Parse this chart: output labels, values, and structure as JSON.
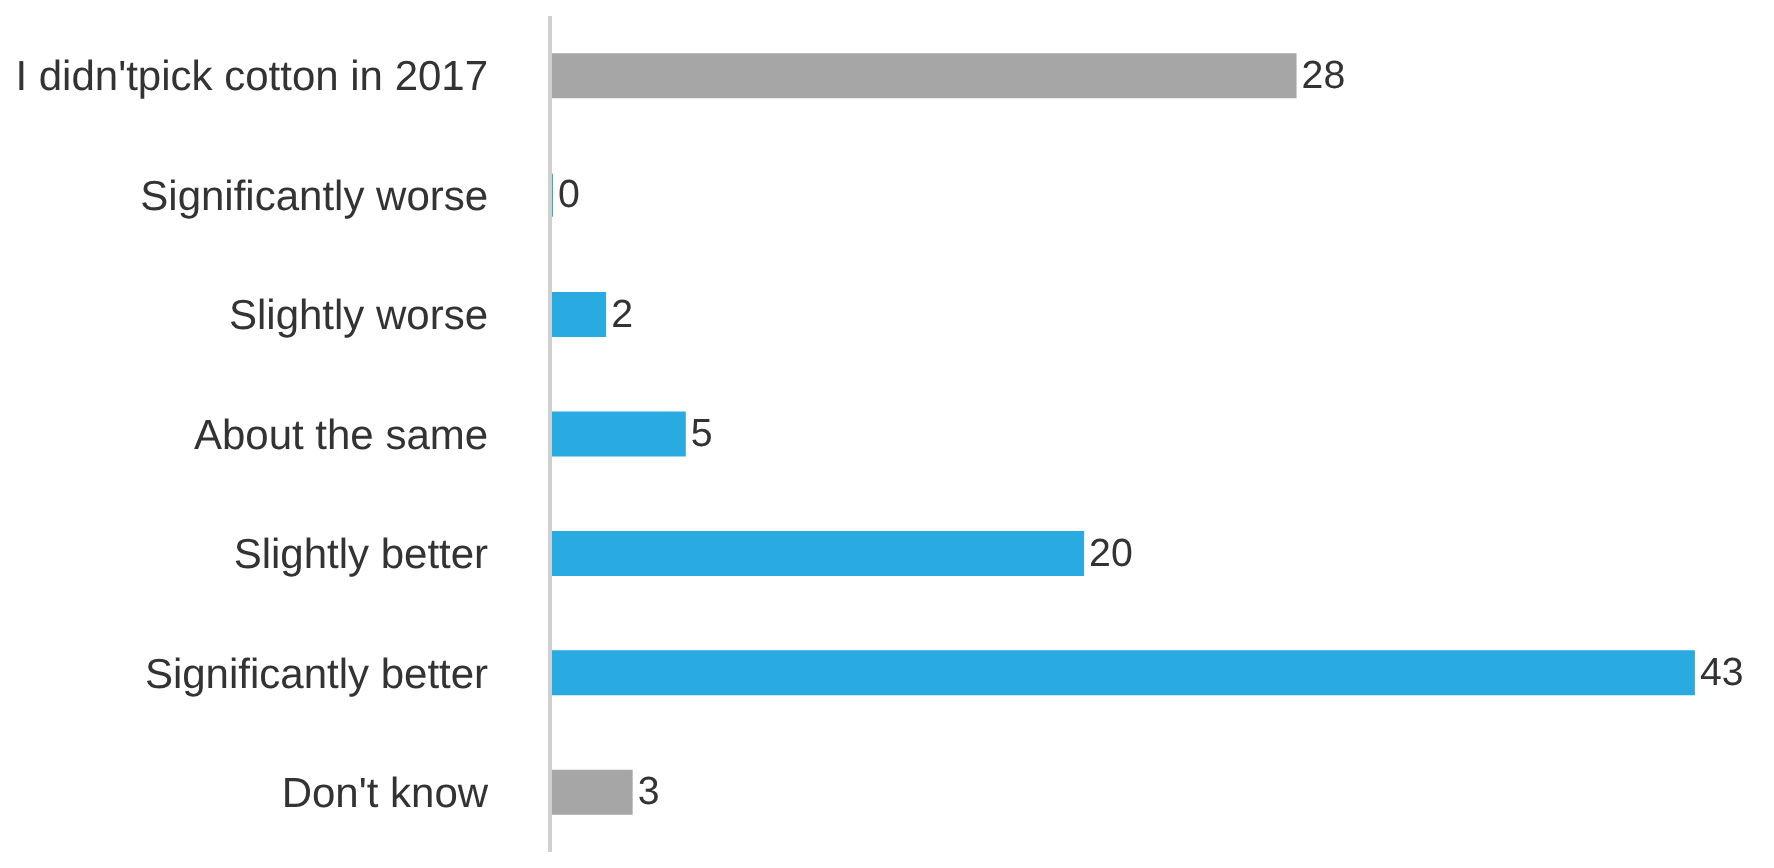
{
  "chart_data": {
    "type": "bar",
    "orientation": "horizontal",
    "categories": [
      "I didn'tpick cotton in 2017",
      "Significantly worse",
      "Slightly worse",
      "About the same",
      "Slightly better",
      "Significantly better",
      "Don't know"
    ],
    "values": [
      28,
      0,
      2,
      5,
      20,
      43,
      3
    ],
    "colors": [
      "#a6a6a6",
      "#29abe2",
      "#29abe2",
      "#29abe2",
      "#29abe2",
      "#29abe2",
      "#a6a6a6"
    ],
    "tick_labels": "y",
    "data_labels": true
  }
}
